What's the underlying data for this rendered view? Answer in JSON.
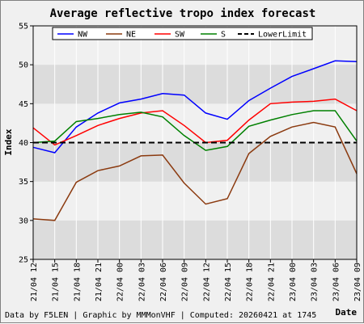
{
  "chart_data": {
    "type": "line",
    "title": "Average reflective tropo index forecast",
    "xlabel": "Date",
    "ylabel": "Index",
    "ylim": [
      25,
      55
    ],
    "yticks": [
      25,
      30,
      35,
      40,
      45,
      50,
      55
    ],
    "grid": true,
    "legend_position": "top",
    "x": [
      "21/04 12",
      "21/04 15",
      "21/04 18",
      "21/04 21",
      "22/04 00",
      "22/04 03",
      "22/04 06",
      "22/04 09",
      "22/04 12",
      "22/04 15",
      "22/04 18",
      "22/04 21",
      "23/04 00",
      "23/04 03",
      "23/04 06",
      "23/04 09"
    ],
    "series": [
      {
        "name": "NW",
        "color": "#0000ff",
        "dashed": false,
        "values": [
          39.4,
          38.7,
          42.0,
          43.8,
          45.1,
          45.6,
          46.3,
          46.1,
          43.8,
          43.0,
          45.4,
          47.0,
          48.5,
          49.5,
          50.5,
          50.4
        ]
      },
      {
        "name": "NE",
        "color": "#8b3a0f",
        "dashed": false,
        "values": [
          30.2,
          30.0,
          34.9,
          36.4,
          37.0,
          38.3,
          38.4,
          34.8,
          32.1,
          32.8,
          38.6,
          40.8,
          42.0,
          42.6,
          42.0,
          36.0
        ]
      },
      {
        "name": "SW",
        "color": "#ff0000",
        "dashed": false,
        "values": [
          41.9,
          39.7,
          40.9,
          42.2,
          43.1,
          43.8,
          44.1,
          42.2,
          40.0,
          40.3,
          42.9,
          45.0,
          45.2,
          45.3,
          45.6,
          44.1
        ]
      },
      {
        "name": "S",
        "color": "#008000",
        "dashed": false,
        "values": [
          40.0,
          40.2,
          42.7,
          43.1,
          43.6,
          43.9,
          43.3,
          40.9,
          39.0,
          39.5,
          42.1,
          42.9,
          43.6,
          44.1,
          44.1,
          40.2
        ]
      },
      {
        "name": "LowerLimit",
        "color": "#000000",
        "dashed": true,
        "values": [
          40,
          40,
          40,
          40,
          40,
          40,
          40,
          40,
          40,
          40,
          40,
          40,
          40,
          40,
          40,
          40
        ]
      }
    ]
  },
  "footer": "Data by F5LEN | Graphic by MMMonVHF | Computed: 20260421 at 1745"
}
